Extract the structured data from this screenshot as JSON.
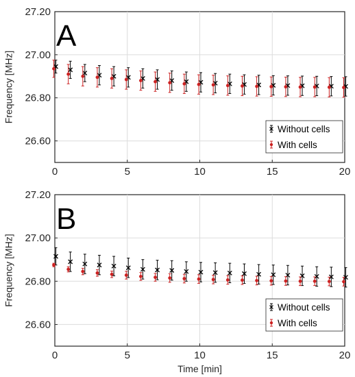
{
  "chart_data": [
    {
      "type": "scatter",
      "panel_label": "A",
      "ylabel": "Frequency [MHz]",
      "xlabel": "",
      "xlim": [
        0,
        20
      ],
      "ylim": [
        26.5,
        27.2
      ],
      "xticks": [
        "0",
        "5",
        "10",
        "15",
        "20"
      ],
      "yticks": [
        "26.60",
        "26.80",
        "27.00",
        "27.20"
      ],
      "grid": true,
      "legend_position": "bottom-right",
      "series": [
        {
          "name": "Without cells",
          "color": "#000000",
          "marker": "x",
          "x": [
            0,
            1,
            2,
            3,
            4,
            5,
            6,
            7,
            8,
            9,
            10,
            11,
            12,
            13,
            14,
            15,
            16,
            17,
            18,
            19,
            20
          ],
          "y": [
            26.945,
            26.93,
            26.915,
            26.905,
            26.9,
            26.895,
            26.89,
            26.885,
            26.88,
            26.875,
            26.872,
            26.868,
            26.865,
            26.862,
            26.86,
            26.858,
            26.857,
            26.856,
            26.855,
            26.854,
            26.853
          ],
          "error": [
            0.03,
            0.04,
            0.04,
            0.045,
            0.045,
            0.045,
            0.045,
            0.045,
            0.045,
            0.045,
            0.045,
            0.045,
            0.045,
            0.045,
            0.045,
            0.045,
            0.045,
            0.045,
            0.045,
            0.045,
            0.045
          ]
        },
        {
          "name": "With cells",
          "color": "#cc2222",
          "marker": "dot",
          "x": [
            0,
            1,
            2,
            3,
            4,
            5,
            6,
            7,
            8,
            9,
            10,
            11,
            12,
            13,
            14,
            15,
            16,
            17,
            18,
            19,
            20
          ],
          "y": [
            26.935,
            26.91,
            26.9,
            26.895,
            26.89,
            26.885,
            26.88,
            26.875,
            26.87,
            26.865,
            26.862,
            26.86,
            26.857,
            26.855,
            26.853,
            26.852,
            26.851,
            26.85,
            26.85,
            26.849,
            26.848
          ],
          "error": [
            0.04,
            0.045,
            0.045,
            0.045,
            0.045,
            0.045,
            0.045,
            0.045,
            0.045,
            0.045,
            0.045,
            0.045,
            0.045,
            0.045,
            0.045,
            0.045,
            0.045,
            0.045,
            0.045,
            0.045,
            0.045
          ]
        }
      ]
    },
    {
      "type": "scatter",
      "panel_label": "B",
      "ylabel": "Frequency [MHz]",
      "xlabel": "Time [min]",
      "xlim": [
        0,
        20
      ],
      "ylim": [
        26.5,
        27.2
      ],
      "xticks": [
        "0",
        "5",
        "10",
        "15",
        "20"
      ],
      "yticks": [
        "26.60",
        "26.80",
        "27.00",
        "27.20"
      ],
      "grid": true,
      "legend_position": "bottom-right",
      "series": [
        {
          "name": "Without cells",
          "color": "#000000",
          "marker": "x",
          "x": [
            0,
            1,
            2,
            3,
            4,
            5,
            6,
            7,
            8,
            9,
            10,
            11,
            12,
            13,
            14,
            15,
            16,
            17,
            18,
            19,
            20
          ],
          "y": [
            26.915,
            26.89,
            26.88,
            26.875,
            26.87,
            26.862,
            26.855,
            26.852,
            26.85,
            26.845,
            26.842,
            26.84,
            26.838,
            26.835,
            26.832,
            26.83,
            26.828,
            26.825,
            26.822,
            26.82,
            26.818
          ],
          "error": [
            0.04,
            0.045,
            0.045,
            0.045,
            0.045,
            0.045,
            0.045,
            0.045,
            0.045,
            0.045,
            0.045,
            0.045,
            0.045,
            0.045,
            0.045,
            0.045,
            0.045,
            0.045,
            0.045,
            0.045,
            0.045
          ]
        },
        {
          "name": "With cells",
          "color": "#cc2222",
          "marker": "dot",
          "x": [
            0,
            1,
            2,
            3,
            4,
            5,
            6,
            7,
            8,
            9,
            10,
            11,
            12,
            13,
            14,
            15,
            16,
            17,
            18,
            19,
            20
          ],
          "y": [
            26.875,
            26.855,
            26.845,
            26.838,
            26.832,
            26.828,
            26.822,
            26.818,
            26.815,
            26.812,
            26.81,
            26.808,
            26.806,
            26.805,
            26.803,
            26.802,
            26.801,
            26.8,
            26.8,
            26.799,
            26.798
          ],
          "error": [
            0.008,
            0.012,
            0.015,
            0.015,
            0.015,
            0.018,
            0.018,
            0.018,
            0.02,
            0.02,
            0.02,
            0.02,
            0.02,
            0.02,
            0.02,
            0.02,
            0.02,
            0.02,
            0.02,
            0.02,
            0.02
          ]
        }
      ]
    }
  ]
}
